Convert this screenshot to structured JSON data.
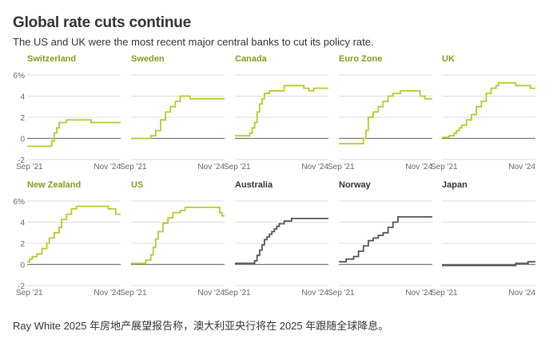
{
  "title": "Global rate cuts continue",
  "subtitle": "The US and UK were the most recent major central banks to cut its policy rate.",
  "caption": "Ray White 2025 年房地产展望报告称，澳大利亚央行将在 2025 年跟随全球降息。",
  "colors": {
    "cut": "#b8c92a",
    "hold": "#555555",
    "label_cut": "#8a9a1e",
    "label_hold": "#333333",
    "axis_text": "#666666",
    "grid": "#dcdcdc",
    "zero": "#777777"
  },
  "chart_data": [
    {
      "type": "line",
      "title": "Switzerland",
      "highlighted": true,
      "xlabel": "",
      "ylabel": "",
      "ylim": [
        -2,
        6
      ],
      "y_ticks": [
        "-2",
        "0",
        "2",
        "4",
        "6%"
      ],
      "x_ticks": [
        "Sep '21",
        "Nov '24"
      ],
      "x_range": [
        0,
        38
      ],
      "x": [
        0,
        10,
        10,
        11,
        11,
        12,
        12,
        13,
        13,
        16,
        16,
        19,
        19,
        22,
        22,
        26,
        26,
        30,
        30,
        38
      ],
      "y": [
        -0.75,
        -0.75,
        -0.25,
        -0.25,
        0.5,
        0.5,
        1,
        1,
        1.5,
        1.5,
        1.75,
        1.75,
        1.75,
        1.75,
        1.75,
        1.75,
        1.5,
        1.5,
        1.5,
        1.5
      ]
    },
    {
      "type": "line",
      "title": "Sweden",
      "highlighted": true,
      "xlabel": "",
      "ylabel": "",
      "ylim": [
        -2,
        6
      ],
      "y_ticks": [
        "-2",
        "0",
        "2",
        "4",
        "6%"
      ],
      "x_ticks": [
        "Sep '21",
        "Nov '24"
      ],
      "x_range": [
        0,
        38
      ],
      "x": [
        0,
        8,
        8,
        10,
        10,
        12,
        12,
        14,
        14,
        16,
        16,
        18,
        18,
        20,
        20,
        24,
        24,
        38
      ],
      "y": [
        0,
        0,
        0.25,
        0.25,
        0.75,
        0.75,
        1.75,
        1.75,
        2.5,
        2.5,
        3,
        3,
        3.5,
        3.5,
        4,
        4,
        3.75,
        3.75
      ]
    },
    {
      "type": "line",
      "title": "Canada",
      "highlighted": true,
      "xlabel": "",
      "ylabel": "",
      "ylim": [
        -2,
        6
      ],
      "y_ticks": [
        "-2",
        "0",
        "2",
        "4",
        "6%"
      ],
      "x_ticks": [
        "Sep '21",
        "Nov '24"
      ],
      "x_range": [
        0,
        38
      ],
      "x": [
        0,
        6,
        6,
        7,
        7,
        8,
        8,
        9,
        9,
        10,
        10,
        11,
        11,
        12,
        12,
        14,
        14,
        20,
        20,
        28,
        28,
        30,
        30,
        32,
        32,
        38
      ],
      "y": [
        0.25,
        0.25,
        0.5,
        0.5,
        1,
        1,
        1.5,
        1.5,
        2.5,
        2.5,
        3.25,
        3.25,
        3.75,
        3.75,
        4.25,
        4.25,
        4.5,
        4.5,
        5,
        5,
        4.75,
        4.75,
        4.5,
        4.5,
        4.75,
        4.75
      ]
    },
    {
      "type": "line",
      "title": "Euro Zone",
      "highlighted": true,
      "xlabel": "",
      "ylabel": "",
      "ylim": [
        -2,
        6
      ],
      "y_ticks": [
        "-2",
        "0",
        "2",
        "4",
        "6%"
      ],
      "x_ticks": [
        "Sep '21",
        "Nov '24"
      ],
      "x_range": [
        0,
        38
      ],
      "x": [
        0,
        10,
        10,
        11,
        11,
        12,
        12,
        14,
        14,
        16,
        16,
        18,
        18,
        20,
        20,
        22,
        22,
        25,
        25,
        33,
        33,
        35,
        35,
        38
      ],
      "y": [
        -0.5,
        -0.5,
        0,
        0,
        0.75,
        0.75,
        2,
        2,
        2.5,
        2.5,
        3,
        3,
        3.5,
        3.5,
        4,
        4,
        4.25,
        4.25,
        4.5,
        4.5,
        4,
        4,
        3.75,
        3.75
      ]
    },
    {
      "type": "line",
      "title": "UK",
      "highlighted": true,
      "xlabel": "",
      "ylabel": "",
      "ylim": [
        -2,
        6
      ],
      "y_ticks": [
        "-2",
        "0",
        "2",
        "4",
        "6%"
      ],
      "x_ticks": [
        "Sep '21",
        "Nov '24"
      ],
      "x_range": [
        0,
        38
      ],
      "x": [
        0,
        3,
        3,
        5,
        5,
        6,
        6,
        7,
        7,
        8,
        8,
        10,
        10,
        12,
        12,
        14,
        14,
        16,
        16,
        18,
        18,
        20,
        20,
        22,
        22,
        23,
        23,
        30,
        30,
        36,
        36,
        38
      ],
      "y": [
        0.1,
        0.1,
        0.25,
        0.25,
        0.5,
        0.5,
        0.75,
        0.75,
        1,
        1,
        1.25,
        1.25,
        1.75,
        1.75,
        2.25,
        2.25,
        3,
        3,
        3.5,
        3.5,
        4.25,
        4.25,
        4.75,
        4.75,
        5,
        5,
        5.25,
        5.25,
        5,
        5,
        4.75,
        4.75
      ]
    },
    {
      "type": "line",
      "title": "New Zealand",
      "highlighted": true,
      "xlabel": "",
      "ylabel": "",
      "ylim": [
        -2,
        6
      ],
      "y_ticks": [
        "-2",
        "0",
        "2",
        "4",
        "6%"
      ],
      "x_ticks": [
        "Sep '21",
        "Nov '24"
      ],
      "x_range": [
        0,
        38
      ],
      "x": [
        0,
        1,
        1,
        2,
        2,
        4,
        4,
        6,
        6,
        8,
        8,
        9,
        9,
        11,
        11,
        13,
        13,
        14,
        14,
        16,
        16,
        18,
        18,
        20,
        20,
        33,
        33,
        36,
        36,
        38
      ],
      "y": [
        0.25,
        0.25,
        0.5,
        0.5,
        0.75,
        0.75,
        1,
        1,
        1.5,
        1.5,
        2,
        2,
        2.5,
        2.5,
        3,
        3,
        3.5,
        3.5,
        4.25,
        4.25,
        4.75,
        4.75,
        5.25,
        5.25,
        5.5,
        5.5,
        5.25,
        5.25,
        4.75,
        4.75
      ]
    },
    {
      "type": "line",
      "title": "US",
      "highlighted": true,
      "xlabel": "",
      "ylabel": "",
      "ylim": [
        -2,
        6
      ],
      "y_ticks": [
        "-2",
        "0",
        "2",
        "4",
        "6%"
      ],
      "x_ticks": [
        "Sep '21",
        "Nov '24"
      ],
      "x_range": [
        0,
        38
      ],
      "x": [
        0,
        6,
        6,
        8,
        8,
        9,
        9,
        10,
        10,
        11,
        11,
        13,
        13,
        15,
        15,
        17,
        17,
        20,
        20,
        22,
        22,
        36,
        36,
        37,
        37,
        38
      ],
      "y": [
        0.1,
        0.1,
        0.4,
        0.4,
        0.9,
        0.9,
        1.6,
        1.6,
        2.4,
        2.4,
        3.1,
        3.1,
        3.9,
        3.9,
        4.4,
        4.4,
        4.9,
        4.9,
        5.1,
        5.1,
        5.4,
        5.4,
        4.9,
        4.9,
        4.6,
        4.6
      ]
    },
    {
      "type": "line",
      "title": "Australia",
      "highlighted": false,
      "xlabel": "",
      "ylabel": "",
      "ylim": [
        -2,
        6
      ],
      "y_ticks": [
        "-2",
        "0",
        "2",
        "4",
        "6%"
      ],
      "x_ticks": [
        "Sep '21",
        "Nov '24"
      ],
      "x_range": [
        0,
        38
      ],
      "x": [
        0,
        8,
        8,
        9,
        9,
        10,
        10,
        11,
        11,
        12,
        12,
        13,
        13,
        14,
        14,
        15,
        15,
        16,
        16,
        17,
        17,
        18,
        18,
        20,
        20,
        21,
        21,
        23,
        23,
        26,
        26,
        38
      ],
      "y": [
        0.1,
        0.1,
        0.35,
        0.35,
        0.85,
        0.85,
        1.35,
        1.35,
        1.85,
        1.85,
        2.35,
        2.35,
        2.6,
        2.6,
        2.85,
        2.85,
        3.1,
        3.1,
        3.35,
        3.35,
        3.6,
        3.6,
        3.85,
        3.85,
        4.1,
        4.1,
        4.1,
        4.1,
        4.35,
        4.35,
        4.35,
        4.35
      ]
    },
    {
      "type": "line",
      "title": "Norway",
      "highlighted": false,
      "xlabel": "",
      "ylabel": "",
      "ylim": [
        -2,
        6
      ],
      "y_ticks": [
        "-2",
        "0",
        "2",
        "4",
        "6%"
      ],
      "x_ticks": [
        "Sep '21",
        "Nov '24"
      ],
      "x_range": [
        0,
        38
      ],
      "x": [
        0,
        3,
        3,
        6,
        6,
        8,
        8,
        10,
        10,
        12,
        12,
        14,
        14,
        16,
        16,
        18,
        18,
        20,
        20,
        22,
        22,
        24,
        24,
        38
      ],
      "y": [
        0.25,
        0.25,
        0.5,
        0.5,
        0.75,
        0.75,
        1.25,
        1.25,
        1.75,
        1.75,
        2.25,
        2.25,
        2.5,
        2.5,
        2.75,
        2.75,
        3,
        3,
        3.5,
        3.5,
        4,
        4,
        4.5,
        4.5
      ]
    },
    {
      "type": "line",
      "title": "Japan",
      "highlighted": false,
      "xlabel": "",
      "ylabel": "",
      "ylim": [
        -2,
        6
      ],
      "y_ticks": [
        "-2",
        "0",
        "2",
        "4",
        "6%"
      ],
      "x_ticks": [
        "Sep '21",
        "Nov '24"
      ],
      "x_range": [
        0,
        38
      ],
      "x": [
        0,
        30,
        30,
        35,
        35,
        38
      ],
      "y": [
        -0.1,
        -0.1,
        0.1,
        0.1,
        0.25,
        0.25
      ]
    }
  ]
}
